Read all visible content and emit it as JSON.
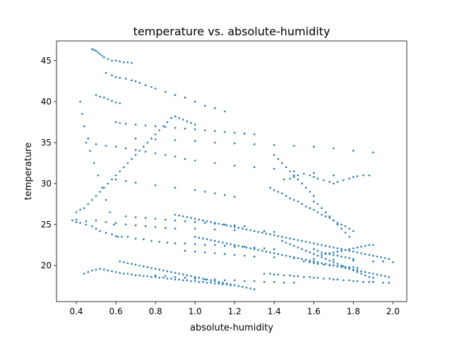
{
  "chart_data": {
    "type": "scatter",
    "title": "temperature vs. absolute-humidity",
    "xlabel": "absolute-humidity",
    "ylabel": "temperature",
    "xlim": [
      0.3,
      2.07
    ],
    "ylim": [
      15.6,
      47.4
    ],
    "xticks": [
      0.4,
      0.6,
      0.8,
      1.0,
      1.2,
      1.4,
      1.6,
      1.8,
      2.0
    ],
    "xtick_labels": [
      "0.4",
      "0.6",
      "0.8",
      "1.0",
      "1.2",
      "1.4",
      "1.6",
      "1.8",
      "2.0"
    ],
    "yticks": [
      20,
      25,
      30,
      35,
      40,
      45
    ],
    "ytick_labels": [
      "20",
      "25",
      "30",
      "35",
      "40",
      "45"
    ],
    "grid": false,
    "legend": "none",
    "marker_color": "#1f77b4",
    "series": [
      {
        "x": [
          0.38,
          0.4,
          0.42,
          0.45,
          0.48,
          0.5,
          0.52,
          0.55,
          0.58,
          0.6,
          0.63,
          0.66,
          0.7,
          0.74,
          0.78,
          0.82,
          0.86,
          0.9,
          0.95,
          1.0,
          1.05,
          1.1,
          1.15,
          1.2,
          1.25,
          1.3,
          1.35,
          1.4,
          0.4,
          0.45,
          0.5,
          0.55,
          0.6,
          0.65,
          0.7,
          0.75,
          0.8,
          0.85,
          0.9,
          1.0,
          1.1,
          1.2,
          1.3,
          1.35,
          1.4,
          0.48,
          0.49,
          0.5,
          0.51,
          0.52,
          0.53,
          0.54,
          0.56,
          0.58,
          0.6,
          0.62,
          0.64,
          0.66,
          0.68,
          0.5,
          0.52,
          0.54,
          0.56,
          0.58,
          0.6,
          0.62,
          0.55,
          0.58,
          0.6,
          0.62,
          0.65,
          0.68,
          0.7,
          0.72,
          0.75,
          0.78,
          0.8,
          0.85,
          0.9,
          0.95,
          1.0,
          1.05,
          1.1,
          1.15,
          0.6,
          0.62,
          0.65,
          0.7,
          0.75,
          0.8,
          0.85,
          0.9,
          0.95,
          1.0,
          1.05,
          1.1,
          1.15,
          1.2,
          1.25,
          1.3,
          0.45,
          0.5,
          0.55,
          0.6,
          0.65,
          0.7,
          0.75,
          0.8,
          0.85,
          0.9,
          0.95,
          1.0,
          1.1,
          1.2,
          1.3,
          1.4,
          1.5,
          1.6,
          1.7,
          0.7,
          0.8,
          0.9,
          1.0,
          1.1,
          1.2,
          1.3,
          1.4,
          1.5,
          1.6,
          1.7,
          1.8,
          1.9,
          0.6,
          0.65,
          0.7,
          0.8,
          0.9,
          1.0,
          1.05,
          1.1,
          1.15,
          1.2,
          0.65,
          0.7,
          0.75,
          0.8,
          0.85,
          0.9,
          0.95,
          1.0,
          1.05,
          1.1,
          1.15,
          1.2,
          1.25,
          0.95,
          1.0,
          1.05,
          1.1,
          1.15,
          1.2,
          1.25,
          1.3,
          1.4,
          1.5,
          1.6,
          1.7,
          1.8,
          1.9,
          1.95,
          2.0,
          0.8,
          0.85,
          0.9,
          0.95,
          1.0,
          1.05,
          1.1,
          1.15,
          1.2,
          1.25,
          1.3,
          1.35,
          1.4,
          1.45,
          1.5,
          1.4,
          1.42,
          1.44,
          1.46,
          1.48,
          1.5,
          1.52,
          1.54,
          1.56,
          1.58,
          1.6,
          1.45,
          1.48,
          1.5,
          1.52,
          1.55,
          1.58,
          1.6,
          1.62,
          1.65,
          1.68,
          1.7,
          1.72,
          1.75,
          1.78,
          1.8,
          1.82,
          1.85,
          1.88,
          1.6,
          1.62,
          1.64,
          1.66,
          1.68,
          1.7,
          1.72,
          1.74,
          1.76,
          1.78,
          1.6,
          1.62,
          1.64,
          1.66,
          1.68,
          1.7,
          1.72,
          1.74,
          1.76,
          1.78,
          1.8,
          1.62,
          1.64,
          1.66,
          1.68,
          1.7,
          1.72,
          1.74,
          1.76,
          1.78,
          1.8,
          1.82,
          1.84,
          1.86,
          1.88,
          1.9,
          1.55,
          1.58,
          1.6,
          1.62,
          1.65,
          1.68,
          1.7,
          1.72,
          1.75,
          1.78,
          1.8,
          1.82,
          1.35,
          1.38,
          1.4,
          1.42,
          1.45,
          1.48,
          1.5,
          1.52,
          1.55,
          1.58,
          1.6,
          1.62,
          1.65,
          1.68,
          1.7,
          1.72,
          1.75,
          1.78,
          1.8,
          1.82,
          1.85,
          1.88,
          1.9,
          1.95,
          1.98,
          1.38,
          1.4,
          1.42,
          1.44,
          1.46,
          1.48,
          1.5,
          1.52,
          1.54,
          1.56,
          1.58,
          1.6,
          1.62,
          1.64,
          1.66,
          1.68,
          1.7,
          1.72,
          1.74,
          1.76,
          1.78,
          1.8,
          1.44,
          1.46,
          1.48,
          1.5,
          1.52,
          1.54,
          1.56,
          1.58,
          1.6,
          1.62,
          1.64,
          1.66,
          1.68,
          1.7,
          1.72,
          1.74,
          1.76,
          1.78,
          1.8,
          1.82,
          1.84,
          1.86,
          1.88,
          1.9
        ],
        "y": [
          25.5,
          25.6,
          25.2,
          25.0,
          24.8,
          24.5,
          24.2,
          24.0,
          23.8,
          23.6,
          23.5,
          23.5,
          23.3,
          23.2,
          23.0,
          22.9,
          22.8,
          22.7,
          22.7,
          22.6,
          22.5,
          22.5,
          22.4,
          22.3,
          22.3,
          22.2,
          22.1,
          22.0,
          25.3,
          25.4,
          25.5,
          25.3,
          25.2,
          25.0,
          24.9,
          24.8,
          24.7,
          24.6,
          24.5,
          24.5,
          24.4,
          24.3,
          24.2,
          24.2,
          24.1,
          46.4,
          46.3,
          46.2,
          46.0,
          45.8,
          45.6,
          45.4,
          45.2,
          45.0,
          45.0,
          44.9,
          44.8,
          44.8,
          44.7,
          40.8,
          40.6,
          40.5,
          40.3,
          40.1,
          39.9,
          39.8,
          43.5,
          43.2,
          43.0,
          42.9,
          42.8,
          42.6,
          42.5,
          42.3,
          42.0,
          41.8,
          41.6,
          41.2,
          40.8,
          40.5,
          40.0,
          39.5,
          39.2,
          38.8,
          37.5,
          37.4,
          37.3,
          37.2,
          37.1,
          37.0,
          36.9,
          36.8,
          36.7,
          36.6,
          36.5,
          36.4,
          36.3,
          36.2,
          36.1,
          36.0,
          35.0,
          34.8,
          34.6,
          34.5,
          34.3,
          34.1,
          33.9,
          33.7,
          33.5,
          33.3,
          33.0,
          32.8,
          32.5,
          32.2,
          32.0,
          31.8,
          31.5,
          31.3,
          31.0,
          35.5,
          35.4,
          35.3,
          35.2,
          35.0,
          34.9,
          34.8,
          34.7,
          34.6,
          34.5,
          34.3,
          34.0,
          33.8,
          30.5,
          30.3,
          30.1,
          29.8,
          29.5,
          29.2,
          29.0,
          28.8,
          28.6,
          28.4,
          26.0,
          25.9,
          25.8,
          25.7,
          25.6,
          25.5,
          25.4,
          25.3,
          25.2,
          25.1,
          25.0,
          24.9,
          24.8,
          21.8,
          21.7,
          21.6,
          21.5,
          21.4,
          21.3,
          21.2,
          21.1,
          21.0,
          20.9,
          20.8,
          20.7,
          20.6,
          20.5,
          20.5,
          20.4,
          18.8,
          18.7,
          18.6,
          18.5,
          18.4,
          18.3,
          18.3,
          18.2,
          18.2,
          18.1,
          18.1,
          18.0,
          18.0,
          17.9,
          17.9,
          33.5,
          33.0,
          32.5,
          32.0,
          31.5,
          31.0,
          30.5,
          30.0,
          29.5,
          29.0,
          28.5,
          30.5,
          30.6,
          30.8,
          31.0,
          31.2,
          31.0,
          30.8,
          30.6,
          30.4,
          30.2,
          30.0,
          30.2,
          30.4,
          30.6,
          30.8,
          30.9,
          31.0,
          31.0,
          27.8,
          27.5,
          27.0,
          26.5,
          26.0,
          25.5,
          25.0,
          24.5,
          24.0,
          23.5,
          22.0,
          21.8,
          21.6,
          21.5,
          21.4,
          21.3,
          21.2,
          21.1,
          21.0,
          20.9,
          20.8,
          21.2,
          21.3,
          21.4,
          21.5,
          21.6,
          21.7,
          21.8,
          21.9,
          22.0,
          22.1,
          22.2,
          22.3,
          22.4,
          22.5,
          22.5,
          20.5,
          20.4,
          20.3,
          20.2,
          20.1,
          20.0,
          20.0,
          19.9,
          19.9,
          19.8,
          19.8,
          19.7,
          19.0,
          19.0,
          18.9,
          18.9,
          18.8,
          18.8,
          18.7,
          18.7,
          18.6,
          18.6,
          18.5,
          18.5,
          18.4,
          18.4,
          18.3,
          18.3,
          18.2,
          18.2,
          18.1,
          18.1,
          18.0,
          18.0,
          18.0,
          17.9,
          17.9,
          29.5,
          29.2,
          29.0,
          28.8,
          28.5,
          28.2,
          28.0,
          27.8,
          27.5,
          27.2,
          27.0,
          26.8,
          26.5,
          26.2,
          26.0,
          25.8,
          25.5,
          25.2,
          25.0,
          24.8,
          24.5,
          24.2,
          23.0,
          22.8,
          22.6,
          22.4,
          22.2,
          22.0,
          21.8,
          21.6,
          21.4,
          21.2,
          21.0,
          20.8,
          20.6,
          20.4,
          20.2,
          20.0,
          19.8,
          19.6,
          19.4,
          19.2,
          19.0,
          18.8,
          18.6,
          18.5
        ]
      },
      {
        "x": [
          0.42,
          0.43,
          0.44,
          0.46,
          0.47,
          0.49,
          0.51,
          0.53,
          0.55,
          0.57,
          0.59,
          0.61,
          0.44,
          0.46,
          0.48,
          0.5,
          0.52,
          0.54,
          0.56,
          0.58,
          0.6,
          0.62,
          0.64,
          0.66,
          0.68,
          0.7,
          0.72,
          0.74,
          0.76,
          0.78,
          0.8,
          0.82,
          0.84,
          0.86,
          0.88,
          0.9,
          0.92,
          0.94,
          0.96,
          0.98,
          1.0,
          1.02,
          1.04,
          1.06,
          1.08,
          1.1,
          1.12,
          1.14,
          1.16,
          1.18,
          0.62,
          0.64,
          0.66,
          0.68,
          0.7,
          0.72,
          0.74,
          0.76,
          0.78,
          0.8,
          0.82,
          0.84,
          0.86,
          0.88,
          0.9,
          0.92,
          0.94,
          0.96,
          0.98,
          1.0,
          1.02,
          1.04,
          1.06,
          1.08,
          1.1,
          1.12,
          1.14,
          1.16,
          1.18,
          1.2,
          1.22,
          1.24,
          1.26,
          1.28,
          1.3,
          0.4,
          0.42,
          0.44,
          0.46,
          0.48,
          0.5,
          0.52,
          0.54,
          0.56,
          0.58,
          0.6,
          0.62,
          0.64,
          0.66,
          0.68,
          0.7,
          0.72,
          0.74,
          0.76,
          0.78,
          0.8,
          0.82,
          0.84,
          0.86,
          0.88,
          0.9,
          0.92,
          0.94,
          0.96,
          0.98,
          1.0,
          0.9,
          0.92,
          0.94,
          0.96,
          0.98,
          1.0,
          1.02,
          1.04,
          1.06,
          1.08,
          1.1,
          1.12,
          1.14,
          1.16,
          1.18,
          1.2,
          1.22,
          1.24,
          1.26,
          1.28,
          1.3,
          1.32,
          1.34,
          1.36,
          1.38,
          1.4,
          1.42,
          1.44,
          1.46,
          1.48,
          1.5,
          1.52,
          1.54,
          1.56,
          1.58,
          1.6,
          1.62,
          1.64,
          1.66,
          1.68,
          1.7,
          1.72,
          1.74,
          1.76,
          1.78,
          1.8,
          1.82,
          1.84,
          1.86,
          1.88,
          1.9,
          1.92,
          1.94,
          1.96,
          1.98,
          1.0,
          1.02,
          1.04,
          1.06,
          1.08,
          1.1,
          1.12,
          1.14,
          1.16,
          1.18,
          1.2,
          1.22,
          1.24,
          1.26,
          1.28,
          1.3,
          1.32,
          1.34,
          1.36,
          1.38,
          1.4,
          1.42,
          1.44,
          1.46,
          1.48,
          1.5,
          1.52,
          1.54,
          1.56,
          1.58,
          1.6,
          1.62,
          1.64,
          1.66,
          1.68,
          1.7,
          1.72,
          1.74,
          1.76,
          1.78,
          1.8,
          1.82,
          1.84,
          1.86,
          1.88,
          1.9,
          1.92,
          1.94,
          1.96,
          1.98
        ],
        "y": [
          40.0,
          38.5,
          37.0,
          35.5,
          34.0,
          32.5,
          31.0,
          29.5,
          28.0,
          26.5,
          25.0,
          23.5,
          19.0,
          19.2,
          19.4,
          19.5,
          19.6,
          19.5,
          19.4,
          19.3,
          19.2,
          19.1,
          19.0,
          19.0,
          18.9,
          18.8,
          18.8,
          18.7,
          18.7,
          18.6,
          18.6,
          18.5,
          18.5,
          18.4,
          18.4,
          18.3,
          18.3,
          18.2,
          18.2,
          18.1,
          18.1,
          18.0,
          18.0,
          17.9,
          17.9,
          17.8,
          17.8,
          17.7,
          17.7,
          17.6,
          20.5,
          20.4,
          20.3,
          20.2,
          20.1,
          20.0,
          19.9,
          19.8,
          19.7,
          19.6,
          19.5,
          19.4,
          19.3,
          19.2,
          19.1,
          19.0,
          18.9,
          18.8,
          18.7,
          18.6,
          18.5,
          18.4,
          18.3,
          18.2,
          18.1,
          18.0,
          17.9,
          17.8,
          17.7,
          17.6,
          17.5,
          17.4,
          17.3,
          17.2,
          17.1,
          26.5,
          26.8,
          27.0,
          27.5,
          28.0,
          28.5,
          29.0,
          29.5,
          30.0,
          30.5,
          31.0,
          31.5,
          32.0,
          32.5,
          33.0,
          33.5,
          34.0,
          34.5,
          35.0,
          35.5,
          36.0,
          36.5,
          37.0,
          37.5,
          38.0,
          38.2,
          38.0,
          37.8,
          37.6,
          37.4,
          37.2,
          26.2,
          26.1,
          26.0,
          25.9,
          25.8,
          25.7,
          25.6,
          25.5,
          25.4,
          25.3,
          25.2,
          25.1,
          25.0,
          24.9,
          24.8,
          24.7,
          24.6,
          24.5,
          24.4,
          24.3,
          24.2,
          24.1,
          24.0,
          23.9,
          23.8,
          23.7,
          23.6,
          23.5,
          23.4,
          23.3,
          23.2,
          23.1,
          23.0,
          22.9,
          22.8,
          22.7,
          22.6,
          22.5,
          22.4,
          22.3,
          22.2,
          22.1,
          22.0,
          21.9,
          21.8,
          21.7,
          21.6,
          21.5,
          21.4,
          21.3,
          21.2,
          21.1,
          21.0,
          20.9,
          20.8,
          23.5,
          23.4,
          23.3,
          23.2,
          23.1,
          23.0,
          22.9,
          22.8,
          22.7,
          22.6,
          22.5,
          22.4,
          22.3,
          22.2,
          22.1,
          22.0,
          21.9,
          21.8,
          21.7,
          21.6,
          21.5,
          21.4,
          21.3,
          21.2,
          21.1,
          21.0,
          20.9,
          20.8,
          20.7,
          20.6,
          20.5,
          20.4,
          20.3,
          20.2,
          20.1,
          20.0,
          19.9,
          19.8,
          19.7,
          19.6,
          19.5,
          19.4,
          19.3,
          19.2,
          19.1,
          19.0,
          18.9,
          18.8,
          18.7,
          18.6
        ]
      }
    ]
  }
}
